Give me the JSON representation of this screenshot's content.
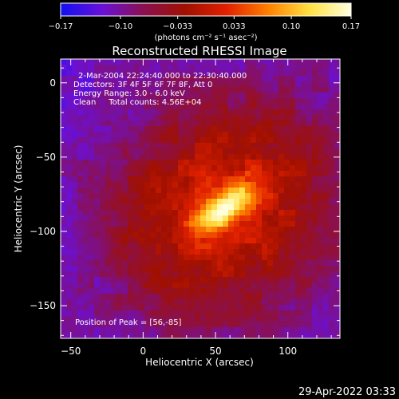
{
  "chart_data": {
    "type": "heatmap",
    "title": "Reconstructed RHESSI Image",
    "xlabel": "Heliocentric X (arcsec)",
    "ylabel": "Heliocentric Y (arcsec)",
    "xlim": [
      -57,
      136
    ],
    "ylim": [
      -172,
      16
    ],
    "x_ticks": [
      -50,
      0,
      50,
      100
    ],
    "y_ticks": [
      -150,
      -100,
      -50,
      0
    ],
    "x_tick_labels": [
      "−50",
      "0",
      "50",
      "100"
    ],
    "y_tick_labels": [
      "−150",
      "−100",
      "−50",
      "0"
    ],
    "colorbar": {
      "range": [
        -0.17,
        0.17
      ],
      "ticks": [
        -0.17,
        -0.1,
        -0.033,
        0.033,
        0.1,
        0.17
      ],
      "tick_labels": [
        "−0.17",
        "−0.10",
        "−0.033",
        "0.033",
        "0.10",
        "0.17"
      ],
      "unit_label": "(photons cm⁻² s⁻¹ asec⁻²)",
      "colors": [
        "#1010f0",
        "#6a10d8",
        "#8a1050",
        "#a01000",
        "#e02000",
        "#ff8000",
        "#ffe040",
        "#ffffe0"
      ]
    },
    "annotations": [
      "2-Mar-2004 22:24:40.000 to 22:30:40.000",
      "Detectors: 3F 4F 5F 6F 7F 8F, Att 0",
      "Energy Range: 3.0 - 6.0 keV",
      "Clean     Total counts: 4.56E+04"
    ],
    "peak_label": "Position of Peak = [56,-85]",
    "peak": [
      56,
      -85
    ],
    "source": {
      "center": [
        56,
        -85
      ],
      "major_axis_angle_deg": 35,
      "core_sigma_major": 18,
      "core_sigma_minor": 7,
      "halo_sigma_major": 55,
      "halo_sigma_minor": 48
    }
  },
  "footer_date": "29-Apr-2022 03:33"
}
